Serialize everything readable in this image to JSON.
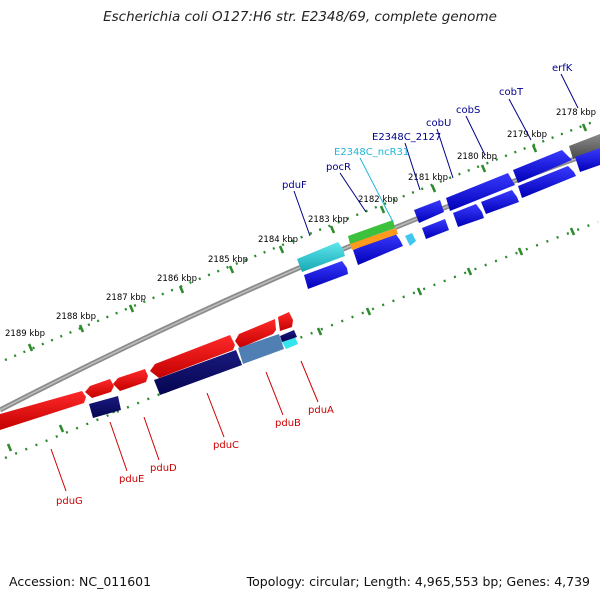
{
  "title": "Escherichia coli O127:H6 str. E2348/69, complete genome",
  "footer": {
    "accession": "Accession: NC_011601",
    "topology": "Topology: circular; Length: 4,965,553 bp; Genes: 4,739"
  },
  "colors": {
    "forward_gene": "#0b0bd9",
    "reverse_gene": "#e60000",
    "reverse_gene_dark": "#0a0a6e",
    "tick": "#2e8b2e",
    "ncRNA_label": "#22b7d6",
    "forward_label": "#00008b",
    "reverse_label": "#cc0000"
  },
  "scale": [
    {
      "label": "2178 kbp"
    },
    {
      "label": "2179 kbp"
    },
    {
      "label": "2180 kbp"
    },
    {
      "label": "2181 kbp"
    },
    {
      "label": "2182 kbp"
    },
    {
      "label": "2183 kbp"
    },
    {
      "label": "2184 kbp"
    },
    {
      "label": "2185 kbp"
    },
    {
      "label": "2186 kbp"
    },
    {
      "label": "2187 kbp"
    },
    {
      "label": "2188 kbp"
    },
    {
      "label": "2189 kbp"
    }
  ],
  "forward_genes": [
    {
      "label": "erfK"
    },
    {
      "label": "cobT"
    },
    {
      "label": "cobS"
    },
    {
      "label": "cobU"
    },
    {
      "label": "E2348C_2127"
    },
    {
      "label": "E2348C_ncR31"
    },
    {
      "label": "pocR"
    },
    {
      "label": "pduF"
    }
  ],
  "reverse_genes": [
    {
      "label": "pduA"
    },
    {
      "label": "pduB"
    },
    {
      "label": "pduC"
    },
    {
      "label": "pduD"
    },
    {
      "label": "pduE"
    },
    {
      "label": "pduG"
    }
  ]
}
